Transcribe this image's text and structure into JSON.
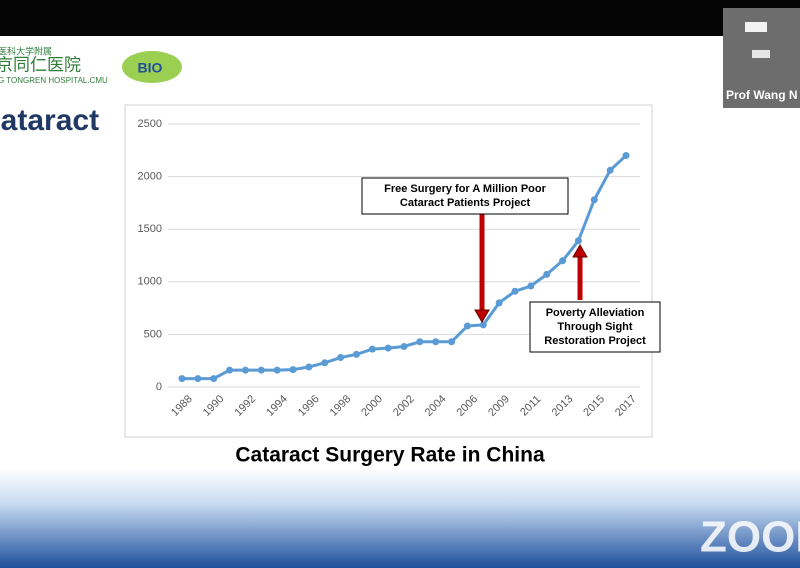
{
  "slide": {
    "title": "Cataract",
    "logo": {
      "line1": "医科大学附属",
      "line2": "京同仁医院",
      "line3": "G TONGREN HOSPITAL.CMU",
      "badge": "BIO"
    },
    "caption": "Cataract Surgery Rate in China"
  },
  "participant": {
    "name": "Prof Wang N"
  },
  "watermark": "ZOOM",
  "chart_data": {
    "type": "line",
    "categories": [
      "1988",
      null,
      "1990",
      null,
      "1992",
      null,
      "1994",
      null,
      "1996",
      null,
      "1998",
      null,
      "2000",
      null,
      "2002",
      null,
      "2004",
      null,
      "2006",
      null,
      "2009",
      null,
      "2011",
      null,
      "2013",
      null,
      "2015",
      null,
      "2017"
    ],
    "series": [
      {
        "name": "Cataract Surgery Rate",
        "color": "#5b9bd5",
        "values": [
          80,
          80,
          80,
          160,
          160,
          160,
          160,
          165,
          190,
          230,
          280,
          310,
          360,
          370,
          385,
          430,
          430,
          430,
          580,
          590,
          800,
          910,
          960,
          1070,
          1200,
          1390,
          1780,
          2060,
          2200
        ]
      }
    ],
    "ylim": [
      0,
      2500
    ],
    "yticks": [
      0,
      500,
      1000,
      1500,
      2000,
      2500
    ],
    "grid": true,
    "annotations": [
      {
        "lines": [
          "Free Surgery for A Million Poor",
          "Cataract Patients Project"
        ],
        "index": 19
      },
      {
        "lines": [
          "Poverty Alleviation",
          "Through Sight",
          "Restoration Project"
        ],
        "index": 25
      }
    ]
  }
}
